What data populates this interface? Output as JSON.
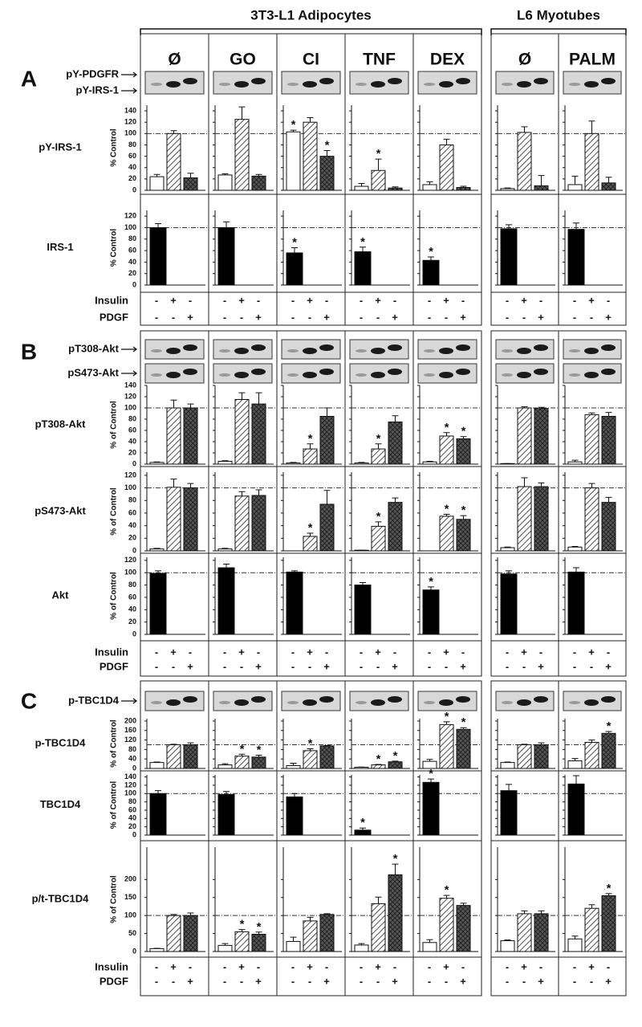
{
  "cell_lines": [
    {
      "name": "3T3-L1 Adipocytes",
      "groups": [
        "Ø",
        "GO",
        "CI",
        "TNF",
        "DEX"
      ]
    },
    {
      "name": "L6 Myotubes",
      "groups": [
        "Ø",
        "PALM"
      ]
    }
  ],
  "treatments": [
    {
      "label": "Insulin",
      "signs": [
        "-",
        "+",
        "-"
      ]
    },
    {
      "label": "PDGF",
      "signs": [
        "-",
        "-",
        "+"
      ]
    }
  ],
  "fills": [
    "white",
    "hatch",
    "crosshatch"
  ],
  "single_fill": "#000000",
  "star": "*",
  "panels": [
    {
      "letter": "A",
      "blots": [
        {
          "labels": [
            "pY-PDGFR",
            "pY-IRS-1"
          ]
        }
      ],
      "charts": [
        {
          "type": "bar",
          "label": "pY-IRS-1",
          "ylabel": "% Control",
          "ylim": [
            0,
            150
          ],
          "yticks": [
            0,
            20,
            40,
            60,
            80,
            100,
            120,
            140
          ],
          "reference": 100,
          "values": [
            [
              24,
              100,
              22
            ],
            [
              27,
              125,
              25
            ],
            [
              103,
              120,
              60
            ],
            [
              7,
              35,
              4
            ],
            [
              10,
              80,
              5
            ],
            [
              3,
              102,
              8
            ],
            [
              10,
              100,
              13
            ]
          ],
          "errors": [
            [
              4,
              5,
              8
            ],
            [
              2,
              22,
              3
            ],
            [
              3,
              8,
              10
            ],
            [
              5,
              20,
              2
            ],
            [
              5,
              10,
              2
            ],
            [
              1,
              10,
              18
            ],
            [
              15,
              22,
              10
            ]
          ],
          "stars": [
            [
              false,
              false,
              false
            ],
            [
              false,
              false,
              false
            ],
            [
              true,
              false,
              true
            ],
            [
              false,
              true,
              false
            ],
            [
              false,
              false,
              false
            ],
            [
              false,
              false,
              false
            ],
            [
              false,
              false,
              false
            ]
          ]
        },
        {
          "type": "bar",
          "label": "IRS-1",
          "ylabel": "% Control",
          "ylim": [
            0,
            130
          ],
          "yticks": [
            0,
            20,
            40,
            60,
            80,
            100,
            120
          ],
          "reference": 100,
          "values": [
            100,
            100,
            56,
            58,
            43,
            98,
            97
          ],
          "errors": [
            7,
            10,
            9,
            8,
            6,
            7,
            11
          ],
          "stars": [
            false,
            false,
            true,
            true,
            true,
            false,
            false
          ]
        }
      ]
    },
    {
      "letter": "B",
      "blots": [
        {
          "labels": [
            "pT308-Akt"
          ]
        },
        {
          "labels": [
            "pS473-Akt"
          ]
        }
      ],
      "charts": [
        {
          "type": "bar",
          "label": "pT308-Akt",
          "ylabel": "% of Control",
          "ylim": [
            0,
            140
          ],
          "yticks": [
            0,
            20,
            40,
            60,
            80,
            100,
            120,
            140
          ],
          "reference": 100,
          "values": [
            [
              3,
              100,
              100
            ],
            [
              5,
              115,
              107
            ],
            [
              2,
              27,
              85
            ],
            [
              2,
              27,
              75
            ],
            [
              4,
              50,
              45
            ],
            [
              1,
              100,
              99
            ],
            [
              4,
              88,
              85
            ]
          ],
          "errors": [
            [
              1,
              14,
              7
            ],
            [
              1,
              12,
              20
            ],
            [
              1,
              9,
              15
            ],
            [
              1,
              9,
              11
            ],
            [
              1,
              6,
              4
            ],
            [
              0,
              2,
              2
            ],
            [
              3,
              3,
              7
            ]
          ],
          "stars": [
            [
              false,
              false,
              false
            ],
            [
              false,
              false,
              false
            ],
            [
              false,
              true,
              false
            ],
            [
              false,
              true,
              false
            ],
            [
              false,
              true,
              true
            ],
            [
              false,
              false,
              false
            ],
            [
              false,
              false,
              false
            ]
          ]
        },
        {
          "type": "bar",
          "label": "pS473-Akt",
          "ylabel": "% of Control",
          "ylim": [
            0,
            125
          ],
          "yticks": [
            0,
            20,
            40,
            60,
            80,
            100,
            120
          ],
          "reference": 100,
          "values": [
            [
              3,
              101,
              100
            ],
            [
              3,
              87,
              88
            ],
            [
              0,
              23,
              74
            ],
            [
              1,
              39,
              77
            ],
            [
              0,
              55,
              50
            ],
            [
              5,
              102,
              102
            ],
            [
              6,
              100,
              77
            ]
          ],
          "errors": [
            [
              1,
              13,
              7
            ],
            [
              1,
              7,
              9
            ],
            [
              0,
              5,
              22
            ],
            [
              0,
              7,
              7
            ],
            [
              0,
              3,
              6
            ],
            [
              1,
              14,
              6
            ],
            [
              1,
              7,
              8
            ]
          ],
          "stars": [
            [
              false,
              false,
              false
            ],
            [
              false,
              false,
              false
            ],
            [
              false,
              true,
              false
            ],
            [
              false,
              true,
              false
            ],
            [
              false,
              true,
              true
            ],
            [
              false,
              false,
              false
            ],
            [
              false,
              false,
              false
            ]
          ]
        },
        {
          "type": "bar",
          "label": "Akt",
          "ylabel": "% of Control",
          "ylim": [
            0,
            125
          ],
          "yticks": [
            0,
            20,
            40,
            60,
            80,
            100,
            120
          ],
          "reference": 100,
          "values": [
            99,
            108,
            101,
            80,
            72,
            98,
            101
          ],
          "errors": [
            4,
            6,
            2,
            4,
            5,
            5,
            7
          ],
          "stars": [
            false,
            false,
            false,
            false,
            true,
            false,
            false
          ]
        }
      ]
    },
    {
      "letter": "C",
      "blots": [
        {
          "labels": [
            "p-TBC1D4"
          ]
        }
      ],
      "charts": [
        {
          "type": "bar",
          "label": "p-TBC1D4",
          "ylabel": "% of Control",
          "ylim": [
            0,
            210
          ],
          "yticks": [
            0,
            40,
            80,
            120,
            160,
            200
          ],
          "reference": 100,
          "values": [
            [
              25,
              100,
              100
            ],
            [
              15,
              52,
              48
            ],
            [
              12,
              75,
              95
            ],
            [
              5,
              15,
              28
            ],
            [
              30,
              185,
              165
            ],
            [
              25,
              100,
              100
            ],
            [
              32,
              110,
              148
            ]
          ],
          "errors": [
            [
              2,
              2,
              8
            ],
            [
              5,
              8,
              8
            ],
            [
              10,
              8,
              2
            ],
            [
              1,
              2,
              3
            ],
            [
              8,
              12,
              7
            ],
            [
              2,
              2,
              8
            ],
            [
              10,
              10,
              8
            ]
          ],
          "stars": [
            [
              false,
              false,
              false
            ],
            [
              false,
              true,
              true
            ],
            [
              false,
              true,
              false
            ],
            [
              false,
              true,
              true
            ],
            [
              false,
              true,
              true
            ],
            [
              false,
              false,
              false
            ],
            [
              false,
              false,
              true
            ]
          ]
        },
        {
          "type": "bar",
          "label": "TBC1D4",
          "ylabel": "% of Control",
          "ylim": [
            0,
            145
          ],
          "yticks": [
            0,
            20,
            40,
            60,
            80,
            100,
            120,
            140
          ],
          "reference": 100,
          "values": [
            100,
            98,
            92,
            12,
            127,
            107,
            123
          ],
          "errors": [
            7,
            7,
            8,
            5,
            8,
            15,
            20
          ],
          "stars": [
            false,
            false,
            false,
            true,
            true,
            false,
            false
          ]
        },
        {
          "type": "bar",
          "label": "p/t-TBC1D4",
          "ylabel": "% of Control",
          "ylim": [
            0,
            290
          ],
          "yticks": [
            0,
            50,
            100,
            150,
            200
          ],
          "reference": 100,
          "values": [
            [
              8,
              100,
              100
            ],
            [
              17,
              55,
              48
            ],
            [
              28,
              85,
              103
            ],
            [
              18,
              133,
              213
            ],
            [
              25,
              148,
              128
            ],
            [
              30,
              105,
              105
            ],
            [
              35,
              120,
              155
            ]
          ],
          "errors": [
            [
              1,
              3,
              7
            ],
            [
              5,
              6,
              6
            ],
            [
              12,
              10,
              2
            ],
            [
              4,
              18,
              30
            ],
            [
              8,
              8,
              6
            ],
            [
              2,
              8,
              8
            ],
            [
              8,
              10,
              6
            ]
          ],
          "stars": [
            [
              false,
              false,
              false
            ],
            [
              false,
              true,
              true
            ],
            [
              false,
              false,
              false
            ],
            [
              false,
              false,
              true
            ],
            [
              false,
              true,
              false
            ],
            [
              false,
              false,
              false
            ],
            [
              false,
              false,
              true
            ]
          ]
        }
      ]
    }
  ]
}
